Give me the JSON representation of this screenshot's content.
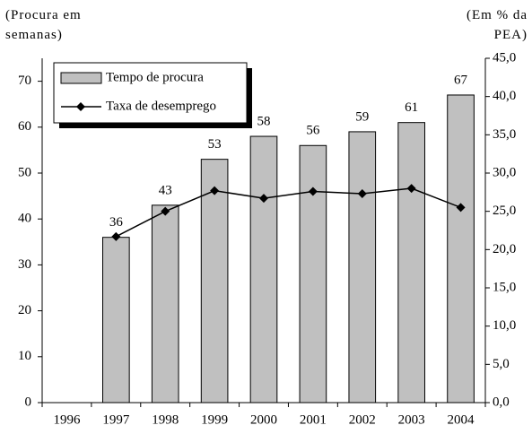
{
  "chart_data": {
    "type": "bar",
    "y_label": "(Procura em semanas)",
    "y2_label": "(Em % da PEA)",
    "categories": [
      "1996",
      "1997",
      "1998",
      "1999",
      "2000",
      "2001",
      "2002",
      "2003",
      "2004"
    ],
    "series": [
      {
        "name": "Tempo de procura",
        "color": "#c0c0c0",
        "values": [
          null,
          36,
          43,
          53,
          58,
          56,
          59,
          61,
          67
        ]
      },
      {
        "name": "Taxa de desemprego",
        "color": "#000000",
        "type": "line",
        "axis": "y2",
        "values": [
          null,
          21.7,
          25.0,
          27.7,
          26.7,
          27.6,
          27.3,
          28.0,
          25.5
        ]
      }
    ],
    "ylim": [
      0,
      75
    ],
    "yticks": [
      0,
      10,
      20,
      30,
      40,
      50,
      60,
      70
    ],
    "y2lim": [
      0,
      45
    ],
    "y2ticks": [
      {
        "value": 0,
        "label": "0,0"
      },
      {
        "value": 5,
        "label": "5,0"
      },
      {
        "value": 10,
        "label": "10,0"
      },
      {
        "value": 15,
        "label": "15,0"
      },
      {
        "value": 20,
        "label": "20,0"
      },
      {
        "value": 25,
        "label": "25,0"
      },
      {
        "value": 30,
        "label": "30,0"
      },
      {
        "value": 35,
        "label": "35,0"
      },
      {
        "value": 40,
        "label": "40,0"
      },
      {
        "value": 45,
        "label": "45,0"
      }
    ],
    "legend": "top-left"
  }
}
